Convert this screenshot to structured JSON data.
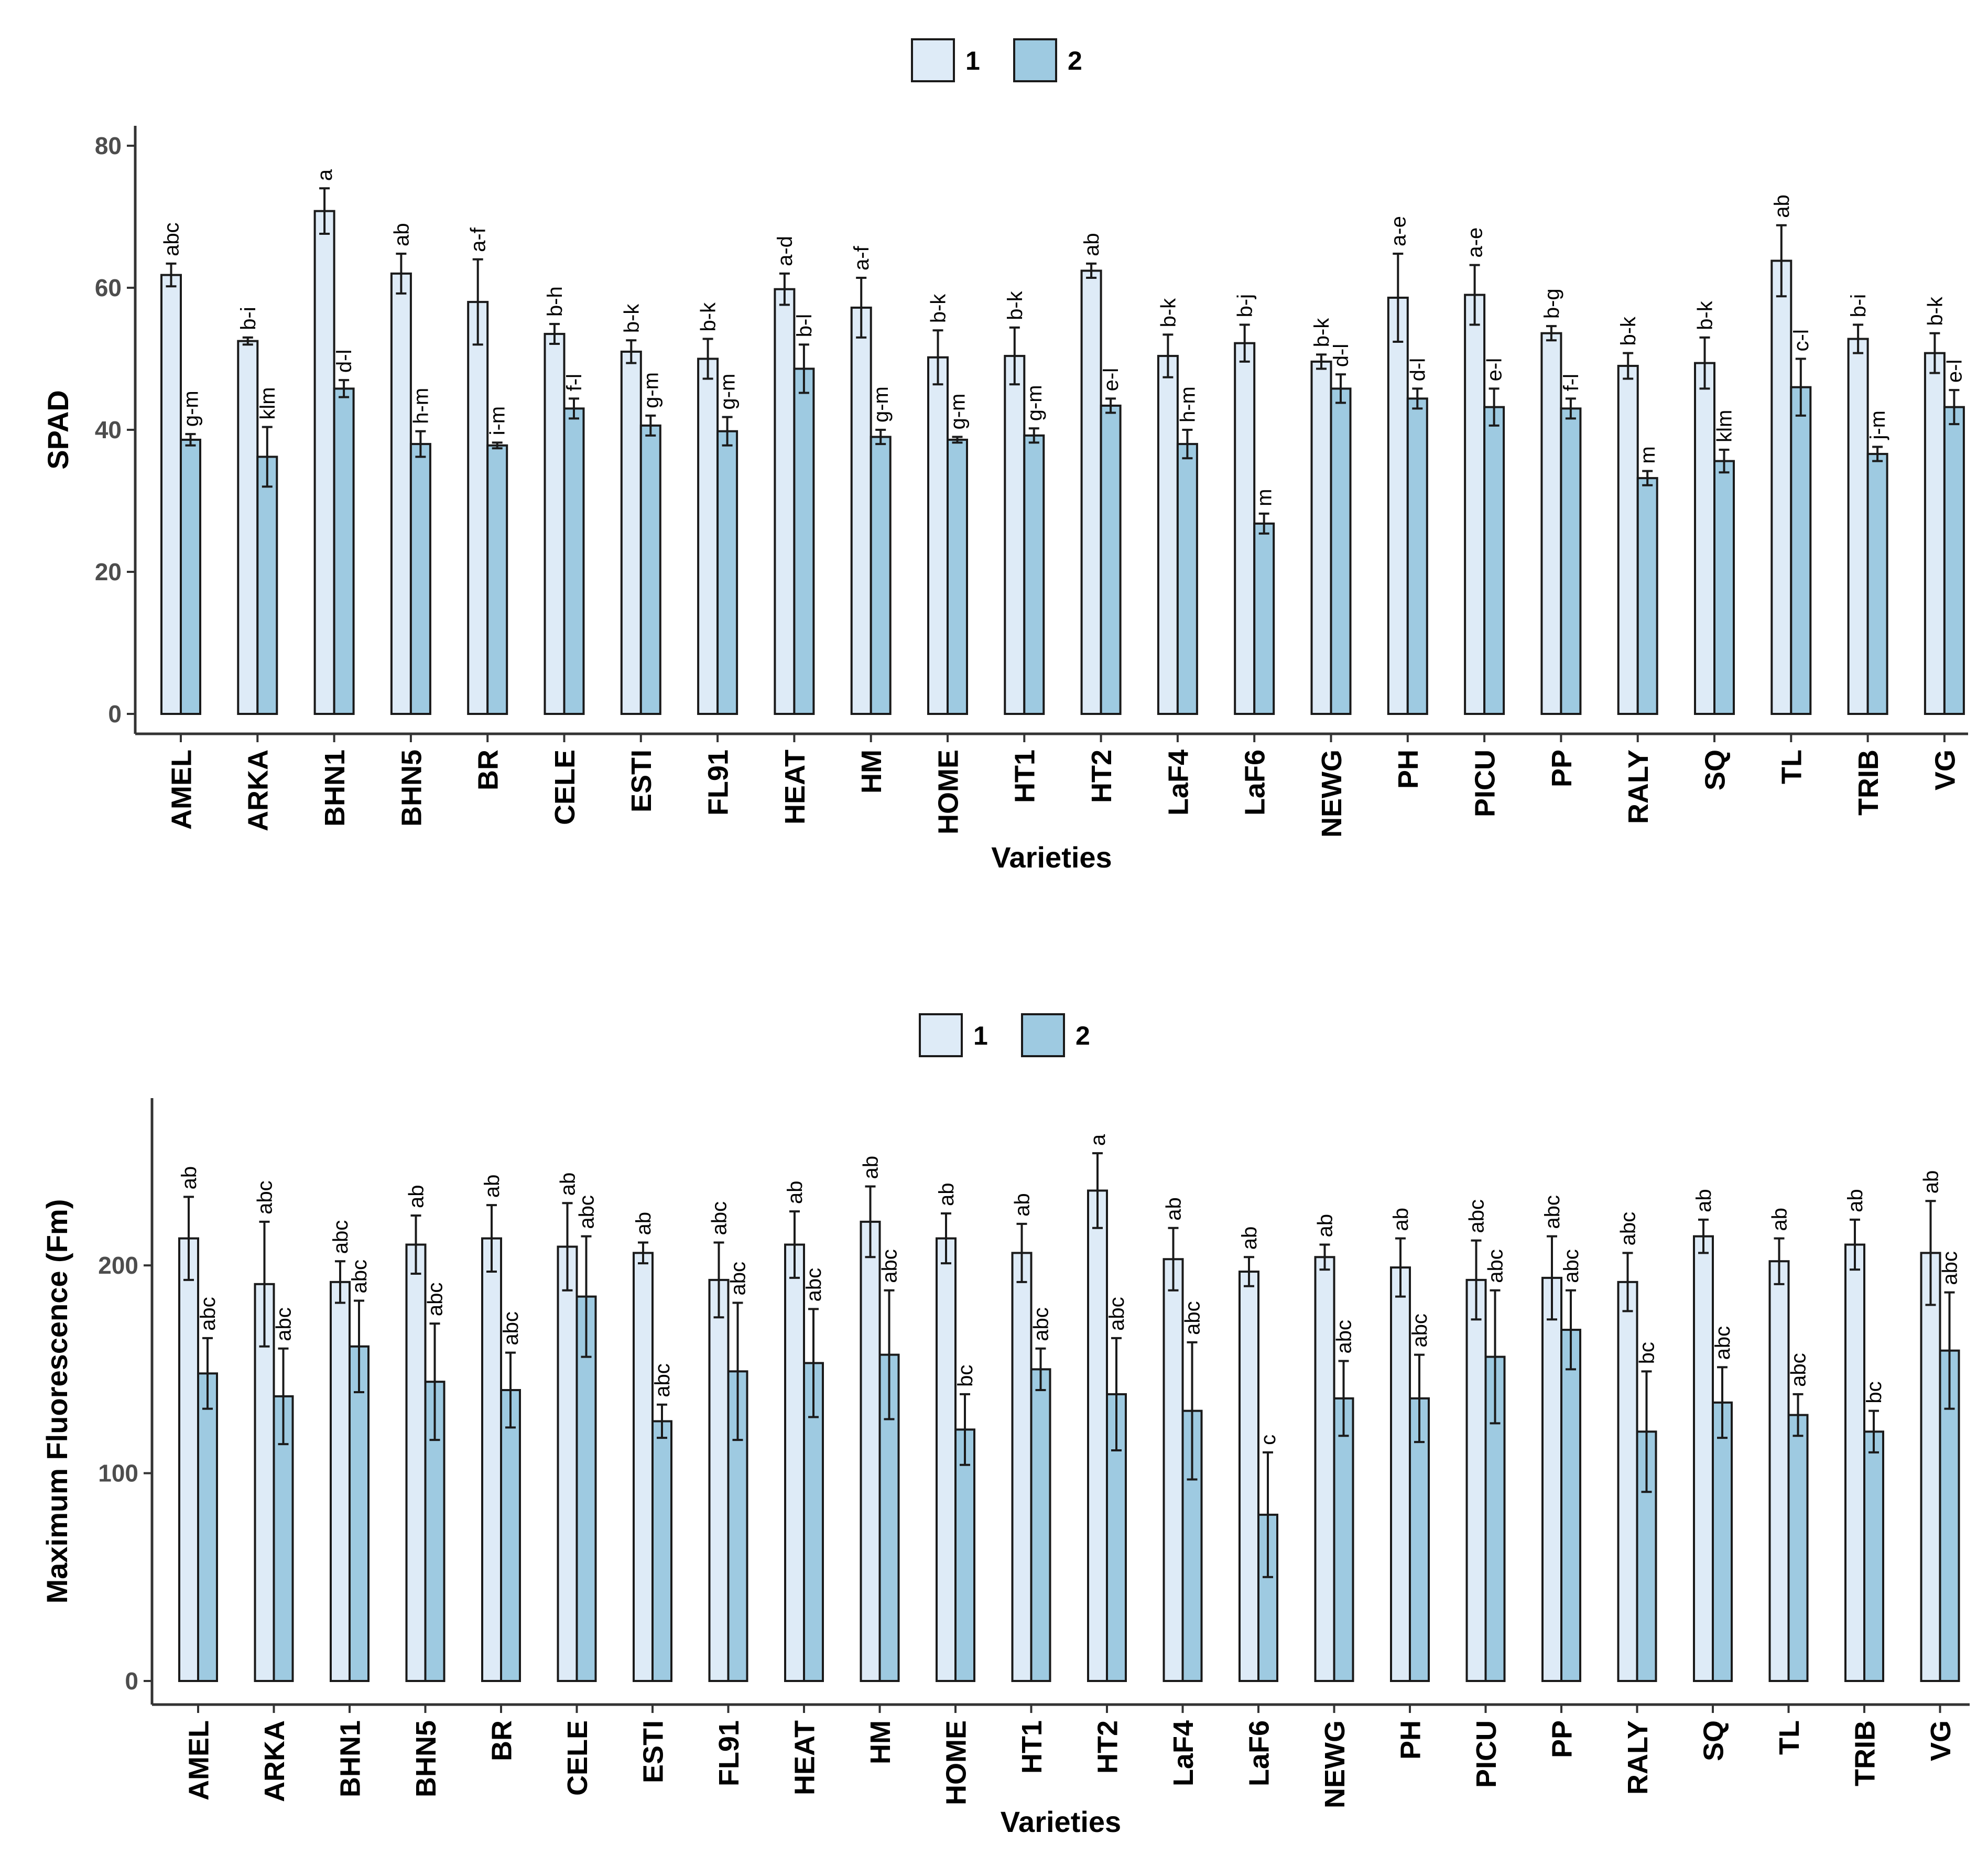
{
  "chart_data": [
    {
      "type": "bar",
      "title": "",
      "xlabel": "Varieties",
      "ylabel": "SPAD",
      "ylim": [
        0,
        80
      ],
      "yticks": [
        0,
        20,
        40,
        60,
        80
      ],
      "grid": false,
      "legend": {
        "position": "top-center",
        "labels": [
          "1",
          "2"
        ]
      },
      "colors": {
        "series_1": "#deebf7",
        "series_2": "#9ecae1",
        "stroke": "#1a1a1a"
      },
      "categories": [
        "AMEL",
        "ARKA",
        "BHN1",
        "BHN5",
        "BR",
        "CELE",
        "ESTI",
        "FL91",
        "HEAT",
        "HM",
        "HOME",
        "HT1",
        "HT2",
        "LaF4",
        "LaF6",
        "NEWG",
        "PH",
        "PICU",
        "PP",
        "RALY",
        "SQ",
        "TL",
        "TRIB",
        "VG"
      ],
      "series": [
        {
          "name": "1",
          "values": [
            61.8,
            52.5,
            70.8,
            62.0,
            58.0,
            53.5,
            51.0,
            50.0,
            59.8,
            57.2,
            50.2,
            50.4,
            62.4,
            50.4,
            52.2,
            49.6,
            58.6,
            59.0,
            53.6,
            49.0,
            49.4,
            63.8,
            52.8,
            50.8
          ],
          "errors": [
            1.6,
            0.5,
            3.2,
            2.8,
            6.0,
            1.4,
            1.6,
            2.8,
            2.2,
            4.2,
            3.8,
            4.0,
            1.0,
            3.0,
            2.6,
            1.0,
            6.2,
            4.2,
            1.0,
            1.8,
            3.6,
            5.0,
            2.0,
            2.8
          ],
          "letters": [
            "abc",
            "b-i",
            "a",
            "ab",
            "a-f",
            "b-h",
            "b-k",
            "b-k",
            "a-d",
            "a-f",
            "b-k",
            "b-k",
            "ab",
            "b-k",
            "b-j",
            "b-k",
            "a-e",
            "a-e",
            "b-g",
            "b-k",
            "b-k",
            "ab",
            "b-i",
            "b-k"
          ]
        },
        {
          "name": "2",
          "values": [
            38.6,
            36.2,
            45.8,
            38.0,
            37.8,
            43.0,
            40.6,
            39.8,
            48.6,
            39.0,
            38.6,
            39.2,
            43.4,
            38.0,
            26.8,
            45.8,
            44.4,
            43.2,
            43.0,
            33.2,
            35.6,
            46.0,
            36.6,
            43.2
          ],
          "errors": [
            0.8,
            4.2,
            1.2,
            1.8,
            0.4,
            1.4,
            1.4,
            2.0,
            3.4,
            1.0,
            0.4,
            1.0,
            1.0,
            2.0,
            1.4,
            2.0,
            1.4,
            2.6,
            1.4,
            1.0,
            1.6,
            4.0,
            1.0,
            2.4
          ],
          "letters": [
            "g-m",
            "klm",
            "d-l",
            "h-m",
            "i-m",
            "f-l",
            "g-m",
            "g-m",
            "b-l",
            "g-m",
            "g-m",
            "g-m",
            "e-l",
            "h-m",
            "m",
            "d-l",
            "d-l",
            "e-l",
            "f-l",
            "m",
            "klm",
            "c-l",
            "j-m",
            "e-l"
          ]
        }
      ]
    },
    {
      "type": "bar",
      "title": "",
      "xlabel": "Varieties",
      "ylabel": "Maximum Fluorescence (Fm)",
      "ylim": [
        0,
        280
      ],
      "yticks": [
        0,
        100,
        200
      ],
      "grid": false,
      "legend": {
        "position": "top-center",
        "labels": [
          "1",
          "2"
        ]
      },
      "colors": {
        "series_1": "#deebf7",
        "series_2": "#9ecae1",
        "stroke": "#1a1a1a"
      },
      "categories": [
        "AMEL",
        "ARKA",
        "BHN1",
        "BHN5",
        "BR",
        "CELE",
        "ESTI",
        "FL91",
        "HEAT",
        "HM",
        "HOME",
        "HT1",
        "HT2",
        "LaF4",
        "LaF6",
        "NEWG",
        "PH",
        "PICU",
        "PP",
        "RALY",
        "SQ",
        "TL",
        "TRIB",
        "VG"
      ],
      "series": [
        {
          "name": "1",
          "values": [
            213,
            191,
            192,
            210,
            213,
            209,
            206,
            193,
            210,
            221,
            213,
            206,
            236,
            203,
            197,
            204,
            199,
            193,
            194,
            192,
            214,
            202,
            210,
            206
          ],
          "errors": [
            20,
            30,
            10,
            14,
            16,
            21,
            5,
            18,
            16,
            17,
            12,
            14,
            18,
            15,
            7,
            6,
            14,
            19,
            20,
            14,
            8,
            11,
            12,
            25
          ],
          "letters": [
            "ab",
            "abc",
            "abc",
            "ab",
            "ab",
            "ab",
            "ab",
            "abc",
            "ab",
            "ab",
            "ab",
            "ab",
            "a",
            "ab",
            "ab",
            "ab",
            "ab",
            "abc",
            "abc",
            "abc",
            "ab",
            "ab",
            "ab",
            "ab"
          ]
        },
        {
          "name": "2",
          "values": [
            148,
            137,
            161,
            144,
            140,
            185,
            125,
            149,
            153,
            157,
            121,
            150,
            138,
            130,
            80,
            136,
            136,
            156,
            169,
            120,
            134,
            128,
            120,
            159
          ],
          "errors": [
            17,
            23,
            22,
            28,
            18,
            29,
            8,
            33,
            26,
            31,
            17,
            10,
            27,
            33,
            30,
            18,
            21,
            32,
            19,
            29,
            17,
            10,
            10,
            28
          ],
          "letters": [
            "abc",
            "abc",
            "abc",
            "abc",
            "abc",
            "abc",
            "abc",
            "abc",
            "abc",
            "abc",
            "bc",
            "abc",
            "abc",
            "abc",
            "c",
            "abc",
            "abc",
            "abc",
            "abc",
            "bc",
            "abc",
            "abc",
            "bc",
            "abc"
          ]
        }
      ]
    }
  ]
}
